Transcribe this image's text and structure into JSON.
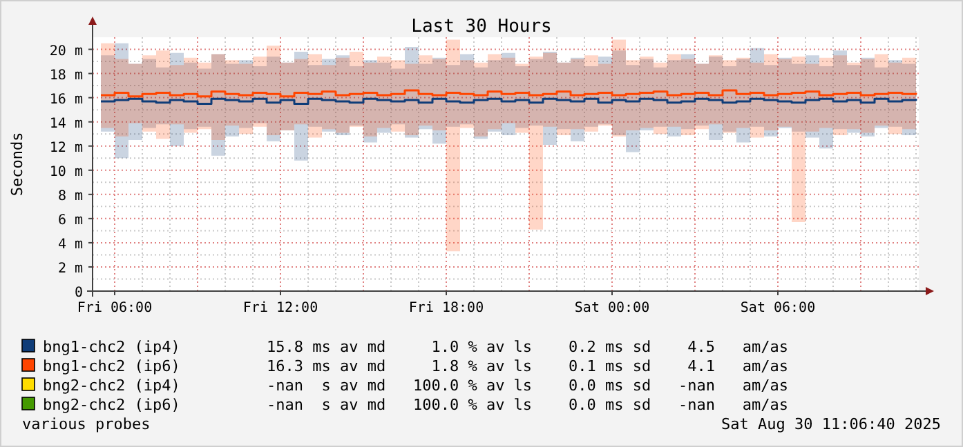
{
  "chart_data": {
    "type": "step",
    "title": "Last 30 Hours",
    "ylabel": "Seconds",
    "x": [
      "2025-08-29T05:30",
      "2025-08-29T06:00",
      "2025-08-29T06:30",
      "2025-08-29T07:00",
      "2025-08-29T07:30",
      "2025-08-29T08:00",
      "2025-08-29T08:30",
      "2025-08-29T09:00",
      "2025-08-29T09:30",
      "2025-08-29T10:00",
      "2025-08-29T10:30",
      "2025-08-29T11:00",
      "2025-08-29T11:30",
      "2025-08-29T12:00",
      "2025-08-29T12:30",
      "2025-08-29T13:00",
      "2025-08-29T13:30",
      "2025-08-29T14:00",
      "2025-08-29T14:30",
      "2025-08-29T15:00",
      "2025-08-29T15:30",
      "2025-08-29T16:00",
      "2025-08-29T16:30",
      "2025-08-29T17:00",
      "2025-08-29T17:30",
      "2025-08-29T18:00",
      "2025-08-29T18:30",
      "2025-08-29T19:00",
      "2025-08-29T19:30",
      "2025-08-29T20:00",
      "2025-08-29T20:30",
      "2025-08-29T21:00",
      "2025-08-29T21:30",
      "2025-08-29T22:00",
      "2025-08-29T22:30",
      "2025-08-29T23:00",
      "2025-08-29T23:30",
      "2025-08-30T00:00",
      "2025-08-30T00:30",
      "2025-08-30T01:00",
      "2025-08-30T01:30",
      "2025-08-30T02:00",
      "2025-08-30T02:30",
      "2025-08-30T03:00",
      "2025-08-30T03:30",
      "2025-08-30T04:00",
      "2025-08-30T04:30",
      "2025-08-30T05:00",
      "2025-08-30T05:30",
      "2025-08-30T06:00",
      "2025-08-30T06:30",
      "2025-08-30T07:00",
      "2025-08-30T07:30",
      "2025-08-30T08:00",
      "2025-08-30T08:30",
      "2025-08-30T09:00",
      "2025-08-30T09:30",
      "2025-08-30T10:00",
      "2025-08-30T10:30",
      "2025-08-30T11:00"
    ],
    "xlim": [
      "2025-08-29T05:12",
      "2025-08-30T11:06"
    ],
    "xticks": [
      {
        "value": "2025-08-29T06:00",
        "label": "Fri 06:00"
      },
      {
        "value": "2025-08-29T12:00",
        "label": "Fri 12:00"
      },
      {
        "value": "2025-08-29T18:00",
        "label": "Fri 18:00"
      },
      {
        "value": "2025-08-30T00:00",
        "label": "Sat 00:00"
      },
      {
        "value": "2025-08-30T06:00",
        "label": "Sat 06:00"
      }
    ],
    "ylim": [
      0,
      21
    ],
    "yticks": [
      {
        "value": 0,
        "label": "0"
      },
      {
        "value": 2,
        "label": "2 m"
      },
      {
        "value": 4,
        "label": "4 m"
      },
      {
        "value": 6,
        "label": "6 m"
      },
      {
        "value": 8,
        "label": "8 m"
      },
      {
        "value": 10,
        "label": "10 m"
      },
      {
        "value": 12,
        "label": "12 m"
      },
      {
        "value": 14,
        "label": "14 m"
      },
      {
        "value": 16,
        "label": "16 m"
      },
      {
        "value": 18,
        "label": "18 m"
      },
      {
        "value": 20,
        "label": "20 m"
      }
    ],
    "grid": true,
    "legend": "bottom",
    "series": [
      {
        "name": "bng1-chc2 (ip4)",
        "color": "#0f3c78",
        "values": [
          15.7,
          15.8,
          15.9,
          15.7,
          15.6,
          15.8,
          15.7,
          15.5,
          15.9,
          15.8,
          15.7,
          15.9,
          15.6,
          15.8,
          15.5,
          15.9,
          15.8,
          15.7,
          15.6,
          15.9,
          15.8,
          15.7,
          15.8,
          15.6,
          15.9,
          15.7,
          15.6,
          15.8,
          15.9,
          15.7,
          15.8,
          15.6,
          15.9,
          15.8,
          15.7,
          15.9,
          15.6,
          15.8,
          15.7,
          15.9,
          15.8,
          15.6,
          15.7,
          15.9,
          15.8,
          15.6,
          15.7,
          15.9,
          15.8,
          15.7,
          15.6,
          15.8,
          15.9,
          15.7,
          15.8,
          15.6,
          15.9,
          15.7,
          15.8,
          15.9
        ],
        "lower": [
          13.2,
          11,
          12.5,
          13.5,
          13.8,
          12,
          13.4,
          13.6,
          11.2,
          12.8,
          13.5,
          13.9,
          12.4,
          13.3,
          10.8,
          13.6,
          13.2,
          12.9,
          13.7,
          12.3,
          13.1,
          13.8,
          12.7,
          13.4,
          12.2,
          13.6,
          13.8,
          12.6,
          13.2,
          12.9,
          13.5,
          13.7,
          12.1,
          13.4,
          12.4,
          13.6,
          13.8,
          12.9,
          11.5,
          13.3,
          13.6,
          12.8,
          13.4,
          13.7,
          12.5,
          13.2,
          12.3,
          13.6,
          12.8,
          13.5,
          13.2,
          12.7,
          11.8,
          13.4,
          13.1,
          12.8,
          13.5,
          13.6,
          12.9,
          13.5
        ],
        "upper": [
          19.5,
          20.5,
          18.8,
          19.2,
          18.5,
          19.7,
          18.9,
          18.4,
          19.6,
          18.8,
          19.1,
          18.6,
          19.4,
          18.9,
          19.8,
          18.7,
          19.2,
          19.5,
          18.6,
          19.1,
          18.9,
          18.4,
          20.2,
          18.8,
          19.3,
          18.7,
          19.6,
          18.5,
          19.1,
          19.7,
          18.6,
          19.2,
          19.8,
          18.9,
          19.3,
          18.6,
          19.4,
          19.9,
          18.7,
          19.2,
          18.5,
          19.1,
          19.6,
          18.8,
          19.4,
          18.6,
          19.2,
          20.1,
          18.7,
          19.3,
          18.8,
          19.5,
          18.6,
          19.9,
          18.7,
          19.3,
          18.5,
          19.1,
          18.8,
          19.4
        ]
      },
      {
        "name": "bng1-chc2 (ip6)",
        "color": "#ff4500",
        "values": [
          16.2,
          16.4,
          16.1,
          16.3,
          16.4,
          16.2,
          16.3,
          16.1,
          16.5,
          16.3,
          16.2,
          16.4,
          16.3,
          16.1,
          16.4,
          16.3,
          16.5,
          16.2,
          16.3,
          16.4,
          16.2,
          16.3,
          16.6,
          16.3,
          16.2,
          16.4,
          16.3,
          16.2,
          16.5,
          16.3,
          16.4,
          16.2,
          16.3,
          16.5,
          16.2,
          16.3,
          16.4,
          16.2,
          16.3,
          16.4,
          16.5,
          16.2,
          16.3,
          16.4,
          16.2,
          16.6,
          16.3,
          16.4,
          16.2,
          16.3,
          16.4,
          16.5,
          16.2,
          16.3,
          16.4,
          16.2,
          16.3,
          16.4,
          16.3,
          16.4
        ],
        "lower": [
          13.5,
          12.8,
          13.9,
          13.2,
          12.6,
          13.8,
          13.1,
          13.4,
          12.5,
          13.7,
          13.0,
          13.6,
          12.9,
          13.3,
          13.8,
          12.7,
          13.4,
          13.1,
          13.6,
          12.8,
          13.5,
          13.2,
          12.9,
          13.7,
          13.3,
          3.3,
          13.5,
          12.8,
          13.4,
          13.9,
          13.1,
          5.1,
          13.6,
          12.9,
          13.4,
          13.2,
          13.7,
          12.8,
          13.3,
          13.5,
          13.0,
          13.6,
          12.9,
          13.4,
          13.8,
          13.1,
          13.5,
          12.7,
          13.3,
          13.6,
          5.7,
          13.2,
          13.5,
          12.9,
          13.4,
          13.1,
          13.7,
          13.0,
          13.4,
          13.6
        ],
        "upper": [
          20.5,
          19.2,
          18.8,
          19.5,
          19.9,
          18.7,
          19.3,
          18.9,
          19.6,
          19.1,
          18.8,
          19.4,
          20.3,
          18.9,
          19.2,
          19.6,
          18.7,
          19.3,
          19.8,
          18.9,
          19.4,
          19.1,
          18.8,
          19.5,
          19.2,
          20.8,
          19.1,
          18.9,
          19.6,
          19.3,
          18.8,
          19.4,
          19.7,
          18.9,
          19.2,
          19.5,
          18.8,
          20.8,
          19.1,
          19.4,
          18.9,
          19.6,
          19.2,
          18.8,
          19.5,
          19.1,
          19.3,
          18.9,
          19.6,
          19.2,
          19.4,
          18.8,
          19.3,
          19.5,
          18.9,
          19.2,
          19.6,
          18.9,
          19.3,
          19.1
        ]
      },
      {
        "name": "bng2-chc2 (ip4)",
        "color": "#ffdd00",
        "values": [
          null,
          null,
          null,
          null,
          null,
          null,
          null,
          null,
          null,
          null,
          null,
          null,
          null,
          null,
          null,
          null,
          null,
          null,
          null,
          null,
          null,
          null,
          null,
          null,
          null,
          null,
          null,
          null,
          null,
          null,
          null,
          null,
          null,
          null,
          null,
          null,
          null,
          null,
          null,
          null,
          null,
          null,
          null,
          null,
          null,
          null,
          null,
          null,
          null,
          null,
          null,
          null,
          null,
          null,
          null,
          null,
          null,
          null,
          null,
          null
        ]
      },
      {
        "name": "bng2-chc2 (ip6)",
        "color": "#449900",
        "values": [
          null,
          null,
          null,
          null,
          null,
          null,
          null,
          null,
          null,
          null,
          null,
          null,
          null,
          null,
          null,
          null,
          null,
          null,
          null,
          null,
          null,
          null,
          null,
          null,
          null,
          null,
          null,
          null,
          null,
          null,
          null,
          null,
          null,
          null,
          null,
          null,
          null,
          null,
          null,
          null,
          null,
          null,
          null,
          null,
          null,
          null,
          null,
          null,
          null,
          null,
          null,
          null,
          null,
          null,
          null,
          null,
          null,
          null,
          null,
          null
        ]
      }
    ],
    "annotations": [
      "15.8 ms av md     1.0 % av ls    0.2 ms sd    4.5   am/as",
      "16.3 ms av md     1.8 % av ls    0.1 ms sd    4.1   am/as",
      "-nan  s av md   100.0 % av ls    0.0 ms sd   -nan   am/as",
      "-nan  s av md   100.0 % av ls    0.0 ms sd   -nan   am/as",
      "various probes",
      "Sat Aug 30 11:06:40 2025"
    ]
  }
}
